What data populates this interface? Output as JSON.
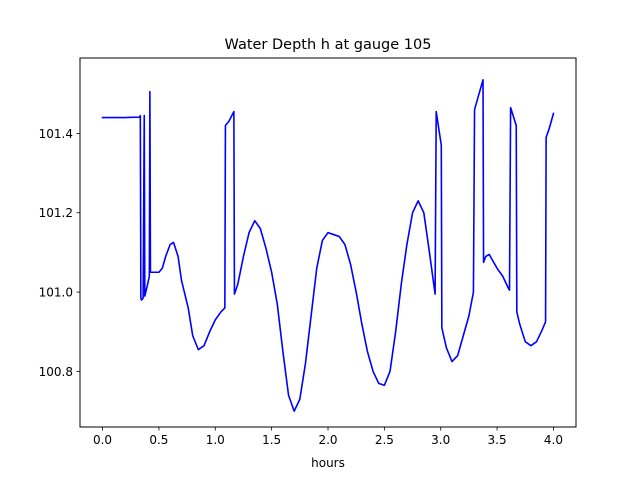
{
  "chart_data": {
    "type": "line",
    "title": "Water Depth h at gauge 105",
    "xlabel": "hours",
    "ylabel": "",
    "xlim": [
      -0.2,
      4.2
    ],
    "ylim": [
      100.66,
      101.59
    ],
    "grid": false,
    "x_ticks": [
      0.0,
      0.5,
      1.0,
      1.5,
      2.0,
      2.5,
      3.0,
      3.5,
      4.0
    ],
    "x_tick_labels": [
      "0.0",
      "0.5",
      "1.0",
      "1.5",
      "2.0",
      "2.5",
      "3.0",
      "3.5",
      "4.0"
    ],
    "y_ticks": [
      100.8,
      101.0,
      101.2,
      101.4
    ],
    "y_tick_labels": [
      "100.8",
      "101.0",
      "101.2",
      "101.4"
    ],
    "series": [
      {
        "color": "#0000ff",
        "points": [
          [
            0.0,
            101.44
          ],
          [
            0.2,
            101.44
          ],
          [
            0.33,
            101.441
          ],
          [
            0.335,
            101.445
          ],
          [
            0.34,
            100.985
          ],
          [
            0.345,
            100.98
          ],
          [
            0.36,
            100.985
          ],
          [
            0.37,
            101.445
          ],
          [
            0.375,
            100.99
          ],
          [
            0.4,
            101.02
          ],
          [
            0.415,
            101.04
          ],
          [
            0.42,
            101.505
          ],
          [
            0.425,
            101.05
          ],
          [
            0.45,
            101.05
          ],
          [
            0.5,
            101.05
          ],
          [
            0.53,
            101.06
          ],
          [
            0.56,
            101.09
          ],
          [
            0.6,
            101.12
          ],
          [
            0.63,
            101.125
          ],
          [
            0.67,
            101.09
          ],
          [
            0.7,
            101.03
          ],
          [
            0.76,
            100.96
          ],
          [
            0.8,
            100.89
          ],
          [
            0.85,
            100.855
          ],
          [
            0.9,
            100.865
          ],
          [
            0.95,
            100.9
          ],
          [
            1.0,
            100.93
          ],
          [
            1.05,
            100.95
          ],
          [
            1.085,
            100.96
          ],
          [
            1.09,
            101.42
          ],
          [
            1.12,
            101.43
          ],
          [
            1.165,
            101.455
          ],
          [
            1.17,
            100.995
          ],
          [
            1.2,
            101.02
          ],
          [
            1.25,
            101.09
          ],
          [
            1.3,
            101.15
          ],
          [
            1.35,
            101.18
          ],
          [
            1.4,
            101.16
          ],
          [
            1.45,
            101.11
          ],
          [
            1.5,
            101.05
          ],
          [
            1.55,
            100.97
          ],
          [
            1.6,
            100.85
          ],
          [
            1.65,
            100.74
          ],
          [
            1.7,
            100.7
          ],
          [
            1.75,
            100.73
          ],
          [
            1.8,
            100.82
          ],
          [
            1.85,
            100.94
          ],
          [
            1.9,
            101.06
          ],
          [
            1.95,
            101.13
          ],
          [
            2.0,
            101.15
          ],
          [
            2.05,
            101.145
          ],
          [
            2.1,
            101.14
          ],
          [
            2.15,
            101.12
          ],
          [
            2.2,
            101.07
          ],
          [
            2.25,
            101.0
          ],
          [
            2.3,
            100.92
          ],
          [
            2.35,
            100.85
          ],
          [
            2.4,
            100.8
          ],
          [
            2.45,
            100.77
          ],
          [
            2.5,
            100.765
          ],
          [
            2.55,
            100.8
          ],
          [
            2.6,
            100.9
          ],
          [
            2.65,
            101.02
          ],
          [
            2.7,
            101.12
          ],
          [
            2.75,
            101.2
          ],
          [
            2.8,
            101.23
          ],
          [
            2.85,
            101.2
          ],
          [
            2.9,
            101.1
          ],
          [
            2.95,
            100.995
          ],
          [
            2.96,
            101.455
          ],
          [
            3.005,
            101.37
          ],
          [
            3.01,
            100.91
          ],
          [
            3.05,
            100.86
          ],
          [
            3.1,
            100.825
          ],
          [
            3.15,
            100.84
          ],
          [
            3.2,
            100.89
          ],
          [
            3.25,
            100.94
          ],
          [
            3.29,
            101.0
          ],
          [
            3.3,
            101.46
          ],
          [
            3.33,
            101.49
          ],
          [
            3.37,
            101.53
          ],
          [
            3.375,
            101.535
          ],
          [
            3.38,
            101.075
          ],
          [
            3.4,
            101.09
          ],
          [
            3.43,
            101.095
          ],
          [
            3.46,
            101.08
          ],
          [
            3.5,
            101.06
          ],
          [
            3.55,
            101.04
          ],
          [
            3.6,
            101.01
          ],
          [
            3.61,
            101.005
          ],
          [
            3.62,
            101.465
          ],
          [
            3.67,
            101.42
          ],
          [
            3.675,
            100.95
          ],
          [
            3.7,
            100.92
          ],
          [
            3.75,
            100.875
          ],
          [
            3.8,
            100.865
          ],
          [
            3.85,
            100.875
          ],
          [
            3.9,
            100.905
          ],
          [
            3.93,
            100.925
          ],
          [
            3.935,
            101.39
          ],
          [
            3.96,
            101.41
          ],
          [
            4.0,
            101.45
          ]
        ]
      }
    ]
  }
}
